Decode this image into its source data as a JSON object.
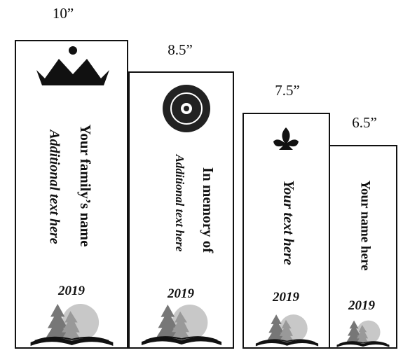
{
  "bookmarks": [
    {
      "size": "10”",
      "lines": [
        "Your family’s name",
        "Additional text here"
      ],
      "year": "2019"
    },
    {
      "size": "8.5”",
      "lines": [
        "In memory of",
        "Additional text here"
      ],
      "year": "2019"
    },
    {
      "size": "7.5”",
      "lines": [
        "Your text here"
      ],
      "year": "2019"
    },
    {
      "size": "6.5”",
      "lines": [
        "Your name here"
      ],
      "year": "2019"
    }
  ]
}
